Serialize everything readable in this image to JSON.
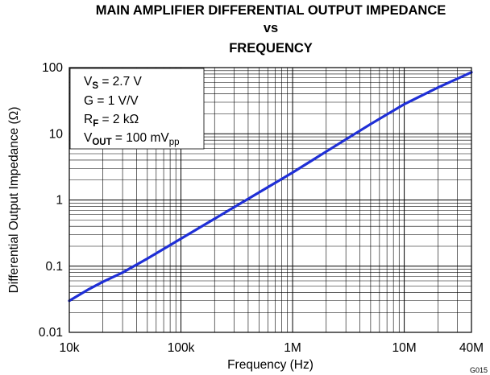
{
  "chart_data": {
    "type": "line",
    "title": [
      "MAIN AMPLIFIER DIFFERENTIAL OUTPUT IMPEDANCE",
      "vs",
      "FREQUENCY"
    ],
    "xlabel": "Frequency (Hz)",
    "ylabel": "Differential Output Impedance (Ω)",
    "x_scale": "log",
    "y_scale": "log",
    "xlim": [
      10000,
      40000000
    ],
    "ylim": [
      0.01,
      100
    ],
    "grid": true,
    "x_ticks": [
      {
        "value": 10000,
        "label": "10k"
      },
      {
        "value": 100000,
        "label": "100k"
      },
      {
        "value": 1000000,
        "label": "1M"
      },
      {
        "value": 10000000,
        "label": "10M"
      },
      {
        "value": 40000000,
        "label": "40M"
      }
    ],
    "y_ticks": [
      {
        "value": 0.01,
        "label": "0.01"
      },
      {
        "value": 0.1,
        "label": "0.1"
      },
      {
        "value": 1,
        "label": "1"
      },
      {
        "value": 10,
        "label": "10"
      },
      {
        "value": 100,
        "label": "100"
      }
    ],
    "legend_box": [
      {
        "main": "V",
        "sub": "S",
        "sub_bold": true,
        "rest": " = 2.7 V"
      },
      {
        "main": "G = 1 V/V",
        "sub": "",
        "sub_bold": false,
        "rest": ""
      },
      {
        "main": "R",
        "sub": "F",
        "sub_bold": true,
        "rest": " = 2 kΩ"
      },
      {
        "main": "V",
        "sub": "OUT",
        "sub_bold": true,
        "rest": " = 100 mV",
        "sub2": "pp"
      }
    ],
    "figure_code": "G015",
    "series": [
      {
        "color": "#1f2fd6",
        "x": [
          10000,
          15000,
          20000,
          30000,
          50000,
          100000,
          200000,
          500000,
          1000000,
          2000000,
          5000000,
          10000000,
          20000000,
          40000000
        ],
        "y": [
          0.03,
          0.045,
          0.058,
          0.08,
          0.13,
          0.26,
          0.52,
          1.3,
          2.6,
          5.4,
          14,
          28,
          50,
          85
        ]
      }
    ]
  }
}
